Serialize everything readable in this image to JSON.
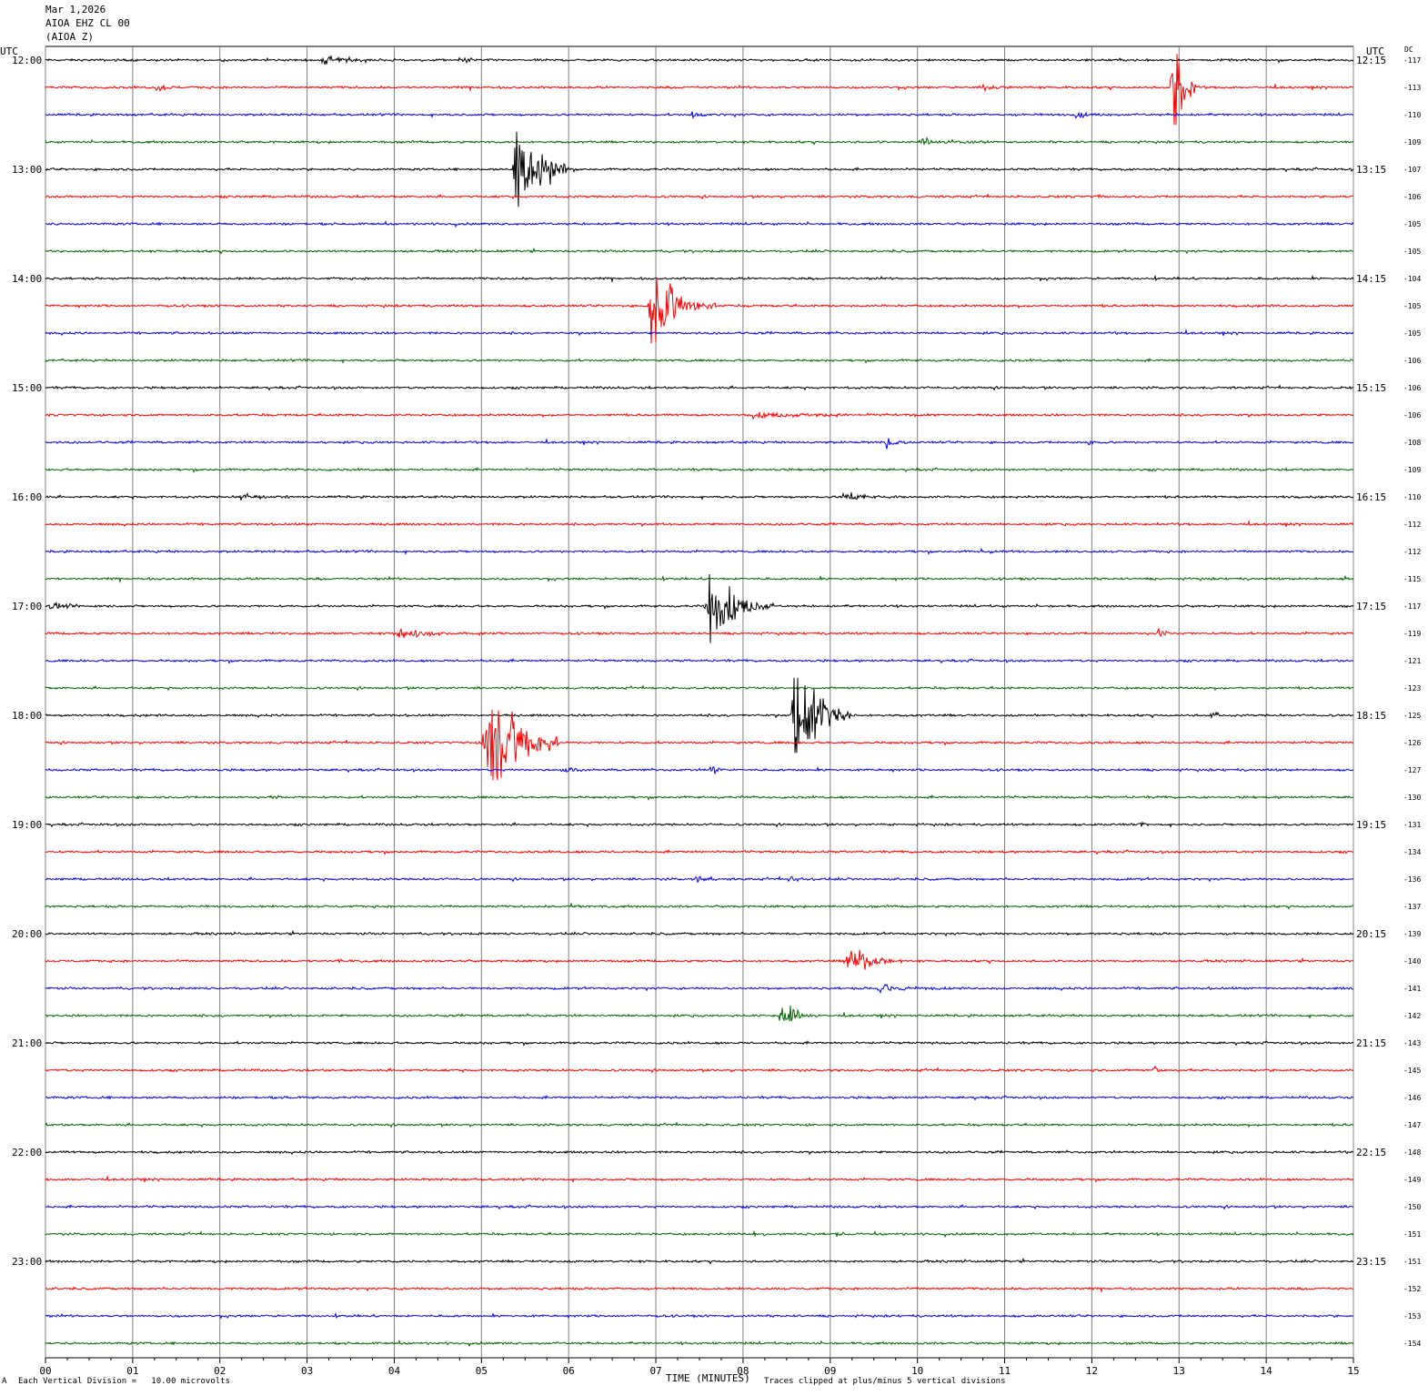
{
  "header": {
    "date": "Mar 1,2026",
    "station": "AIOA EHZ CL 00",
    "component": "(AIOA Z)"
  },
  "footer": {
    "scale_note": "Each Vertical Division =   10.00 microvolts",
    "clip_note": "Traces clipped at plus/minus 5 vertical divisions",
    "corner_mark": "A"
  },
  "colors": {
    "black": "#000000",
    "red": "#ff0000",
    "blue": "#0000ff",
    "green": "#006400",
    "grid": "#808080"
  },
  "chart_data": {
    "type": "line",
    "title": "",
    "xlabel": "TIME (MINUTES)",
    "xlim": [
      0,
      15
    ],
    "x_ticks": [
      "00",
      "01",
      "02",
      "03",
      "04",
      "05",
      "06",
      "07",
      "08",
      "09",
      "10",
      "11",
      "12",
      "13",
      "14",
      "15"
    ],
    "left_axis_label": "UTC",
    "right_axis_label": "UTC",
    "dc_label": "DC",
    "left_hour_labels": [
      "12:00",
      "13:00",
      "14:00",
      "15:00",
      "16:00",
      "17:00",
      "18:00",
      "19:00",
      "20:00",
      "21:00",
      "22:00",
      "23:00"
    ],
    "right_hour_labels": [
      "12:15",
      "13:15",
      "14:15",
      "15:15",
      "16:15",
      "17:15",
      "18:15",
      "19:15",
      "20:15",
      "21:15",
      "22:15",
      "23:15"
    ],
    "dc_offsets": [
      -117,
      -113,
      -110,
      -109,
      -107,
      -106,
      -105,
      -105,
      -104,
      -105,
      -105,
      -106,
      -106,
      -106,
      -108,
      -109,
      -110,
      -112,
      -112,
      -115,
      -117,
      -119,
      -121,
      -123,
      -125,
      -126,
      -127,
      -130,
      -131,
      -134,
      -136,
      -137,
      -139,
      -140,
      -141,
      -142,
      -143,
      -145,
      -146,
      -147,
      -148,
      -149,
      -150,
      -151,
      -151,
      -152,
      -153,
      -154
    ],
    "trace_color_cycle": [
      "black",
      "red",
      "blue",
      "green"
    ],
    "traces_per_hour": 4,
    "events": [
      {
        "trace": 0,
        "minute": 3.1,
        "amp": 0.5,
        "dur": 1.3
      },
      {
        "trace": 0,
        "minute": 4.7,
        "amp": 0.35,
        "dur": 0.6
      },
      {
        "trace": 1,
        "minute": 1.25,
        "amp": 0.6,
        "dur": 0.4
      },
      {
        "trace": 1,
        "minute": 10.7,
        "amp": 0.3,
        "dur": 0.6
      },
      {
        "trace": 1,
        "minute": 12.9,
        "amp": 9,
        "dur": 0.3
      },
      {
        "trace": 2,
        "minute": 7.4,
        "amp": 0.8,
        "dur": 0.2
      },
      {
        "trace": 2,
        "minute": 11.8,
        "amp": 0.5,
        "dur": 0.4
      },
      {
        "trace": 3,
        "minute": 10.0,
        "amp": 0.6,
        "dur": 0.9
      },
      {
        "trace": 4,
        "minute": 5.35,
        "amp": 9,
        "dur": 0.7
      },
      {
        "trace": 5,
        "minute": 12.05,
        "amp": 0.4,
        "dur": 0.2
      },
      {
        "trace": 9,
        "minute": 6.9,
        "amp": 5,
        "dur": 0.8
      },
      {
        "trace": 13,
        "minute": 8.0,
        "amp": 0.3,
        "dur": 2.5
      },
      {
        "trace": 14,
        "minute": 9.6,
        "amp": 1.1,
        "dur": 0.3
      },
      {
        "trace": 14,
        "minute": 11.95,
        "amp": 0.4,
        "dur": 0.2
      },
      {
        "trace": 16,
        "minute": 2.2,
        "amp": 0.5,
        "dur": 0.6
      },
      {
        "trace": 16,
        "minute": 9.1,
        "amp": 0.6,
        "dur": 0.9
      },
      {
        "trace": 18,
        "minute": 10.7,
        "amp": 0.3,
        "dur": 0.4
      },
      {
        "trace": 19,
        "minute": 14.9,
        "amp": 0.5,
        "dur": 0.1
      },
      {
        "trace": 20,
        "minute": 0.0,
        "amp": 0.4,
        "dur": 0.8
      },
      {
        "trace": 20,
        "minute": 7.55,
        "amp": 5,
        "dur": 0.8
      },
      {
        "trace": 21,
        "minute": 3.95,
        "amp": 0.7,
        "dur": 1.1
      },
      {
        "trace": 21,
        "minute": 12.75,
        "amp": 0.9,
        "dur": 0.2
      },
      {
        "trace": 24,
        "minute": 8.55,
        "amp": 9,
        "dur": 0.7
      },
      {
        "trace": 24,
        "minute": 13.35,
        "amp": 0.9,
        "dur": 0.2
      },
      {
        "trace": 25,
        "minute": 5.0,
        "amp": 9,
        "dur": 0.9
      },
      {
        "trace": 26,
        "minute": 5.9,
        "amp": 0.6,
        "dur": 0.4
      },
      {
        "trace": 26,
        "minute": 7.6,
        "amp": 0.8,
        "dur": 0.3
      },
      {
        "trace": 27,
        "minute": 2.6,
        "amp": 0.3,
        "dur": 0.2
      },
      {
        "trace": 28,
        "minute": 9.6,
        "amp": 0.3,
        "dur": 0.2
      },
      {
        "trace": 28,
        "minute": 12.55,
        "amp": 0.3,
        "dur": 0.2
      },
      {
        "trace": 30,
        "minute": 7.45,
        "amp": 0.7,
        "dur": 0.3
      },
      {
        "trace": 30,
        "minute": 8.5,
        "amp": 0.8,
        "dur": 0.3
      },
      {
        "trace": 31,
        "minute": 6.0,
        "amp": 0.3,
        "dur": 0.4
      },
      {
        "trace": 33,
        "minute": 3.35,
        "amp": 0.4,
        "dur": 0.15
      },
      {
        "trace": 33,
        "minute": 9.15,
        "amp": 1.8,
        "dur": 0.8
      },
      {
        "trace": 34,
        "minute": 9.5,
        "amp": 0.6,
        "dur": 0.9
      },
      {
        "trace": 35,
        "minute": 8.4,
        "amp": 2.5,
        "dur": 0.5
      },
      {
        "trace": 37,
        "minute": 12.7,
        "amp": 1.0,
        "dur": 0.2
      },
      {
        "trace": 38,
        "minute": 2.75,
        "amp": 0.4,
        "dur": 0.15
      },
      {
        "trace": 43,
        "minute": 8.1,
        "amp": 0.4,
        "dur": 0.3
      },
      {
        "trace": 43,
        "minute": 9.05,
        "amp": 0.2,
        "dur": 0.4
      }
    ]
  }
}
